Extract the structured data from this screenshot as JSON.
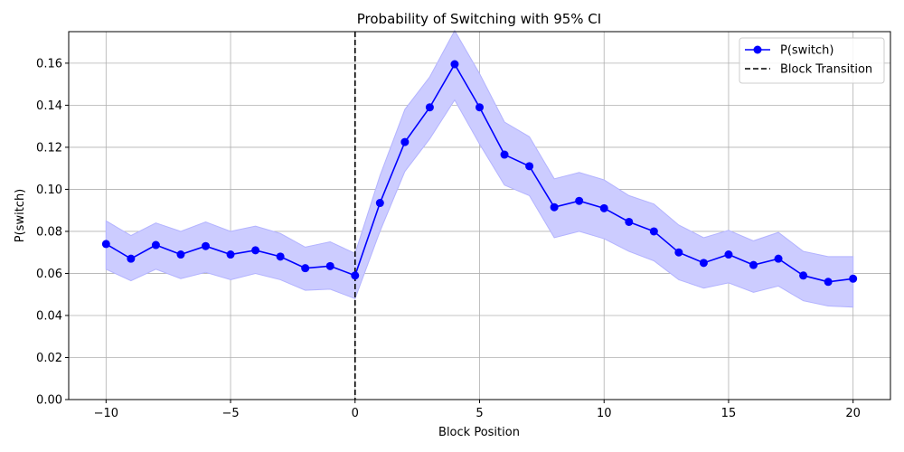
{
  "chart_data": {
    "type": "line",
    "title": "Probability of Switching with 95% CI",
    "xlabel": "Block Position",
    "ylabel": "P(switch)",
    "xlim": [
      -11.5,
      21.5
    ],
    "ylim": [
      0,
      0.175
    ],
    "xticks": [
      -10,
      -5,
      0,
      5,
      10,
      15,
      20
    ],
    "xtick_labels": [
      "−10",
      "−5",
      "0",
      "5",
      "10",
      "15",
      "20"
    ],
    "yticks": [
      0.0,
      0.02,
      0.04,
      0.06,
      0.08,
      0.1,
      0.12,
      0.14,
      0.16
    ],
    "ytick_labels": [
      "0.00",
      "0.02",
      "0.04",
      "0.06",
      "0.08",
      "0.10",
      "0.12",
      "0.14",
      "0.16"
    ],
    "grid": true,
    "legend_position": "top-right",
    "x": [
      -10,
      -9,
      -8,
      -7,
      -6,
      -5,
      -4,
      -3,
      -2,
      -1,
      0,
      1,
      2,
      3,
      4,
      5,
      6,
      7,
      8,
      9,
      10,
      11,
      12,
      13,
      14,
      15,
      16,
      17,
      18,
      19,
      20
    ],
    "series": [
      {
        "name": "P(switch)",
        "color": "#0000ff",
        "values": [
          0.074,
          0.067,
          0.0735,
          0.069,
          0.073,
          0.069,
          0.071,
          0.068,
          0.0625,
          0.0635,
          0.059,
          0.0935,
          0.1225,
          0.139,
          0.1595,
          0.139,
          0.1165,
          0.111,
          0.0915,
          0.0945,
          0.091,
          0.0845,
          0.08,
          0.07,
          0.065,
          0.069,
          0.064,
          0.067,
          0.059,
          0.056,
          0.0575
        ],
        "ci_lower": [
          0.062,
          0.0565,
          0.062,
          0.0575,
          0.0605,
          0.057,
          0.06,
          0.057,
          0.052,
          0.0525,
          0.048,
          0.08,
          0.1085,
          0.124,
          0.1425,
          0.1215,
          0.102,
          0.097,
          0.077,
          0.08,
          0.0765,
          0.0705,
          0.066,
          0.057,
          0.053,
          0.0555,
          0.051,
          0.054,
          0.047,
          0.0445,
          0.044
        ],
        "ci_upper": [
          0.085,
          0.078,
          0.084,
          0.08,
          0.0845,
          0.08,
          0.0825,
          0.079,
          0.0725,
          0.075,
          0.0695,
          0.1065,
          0.138,
          0.1535,
          0.1755,
          0.155,
          0.132,
          0.125,
          0.105,
          0.108,
          0.1045,
          0.097,
          0.093,
          0.083,
          0.077,
          0.0805,
          0.0755,
          0.0795,
          0.0705,
          0.068,
          0.068
        ],
        "ci_color": "#ccccff"
      }
    ],
    "reference_lines": [
      {
        "name": "Block Transition",
        "x": 0,
        "color": "#000000",
        "style": "dashed"
      }
    ]
  }
}
